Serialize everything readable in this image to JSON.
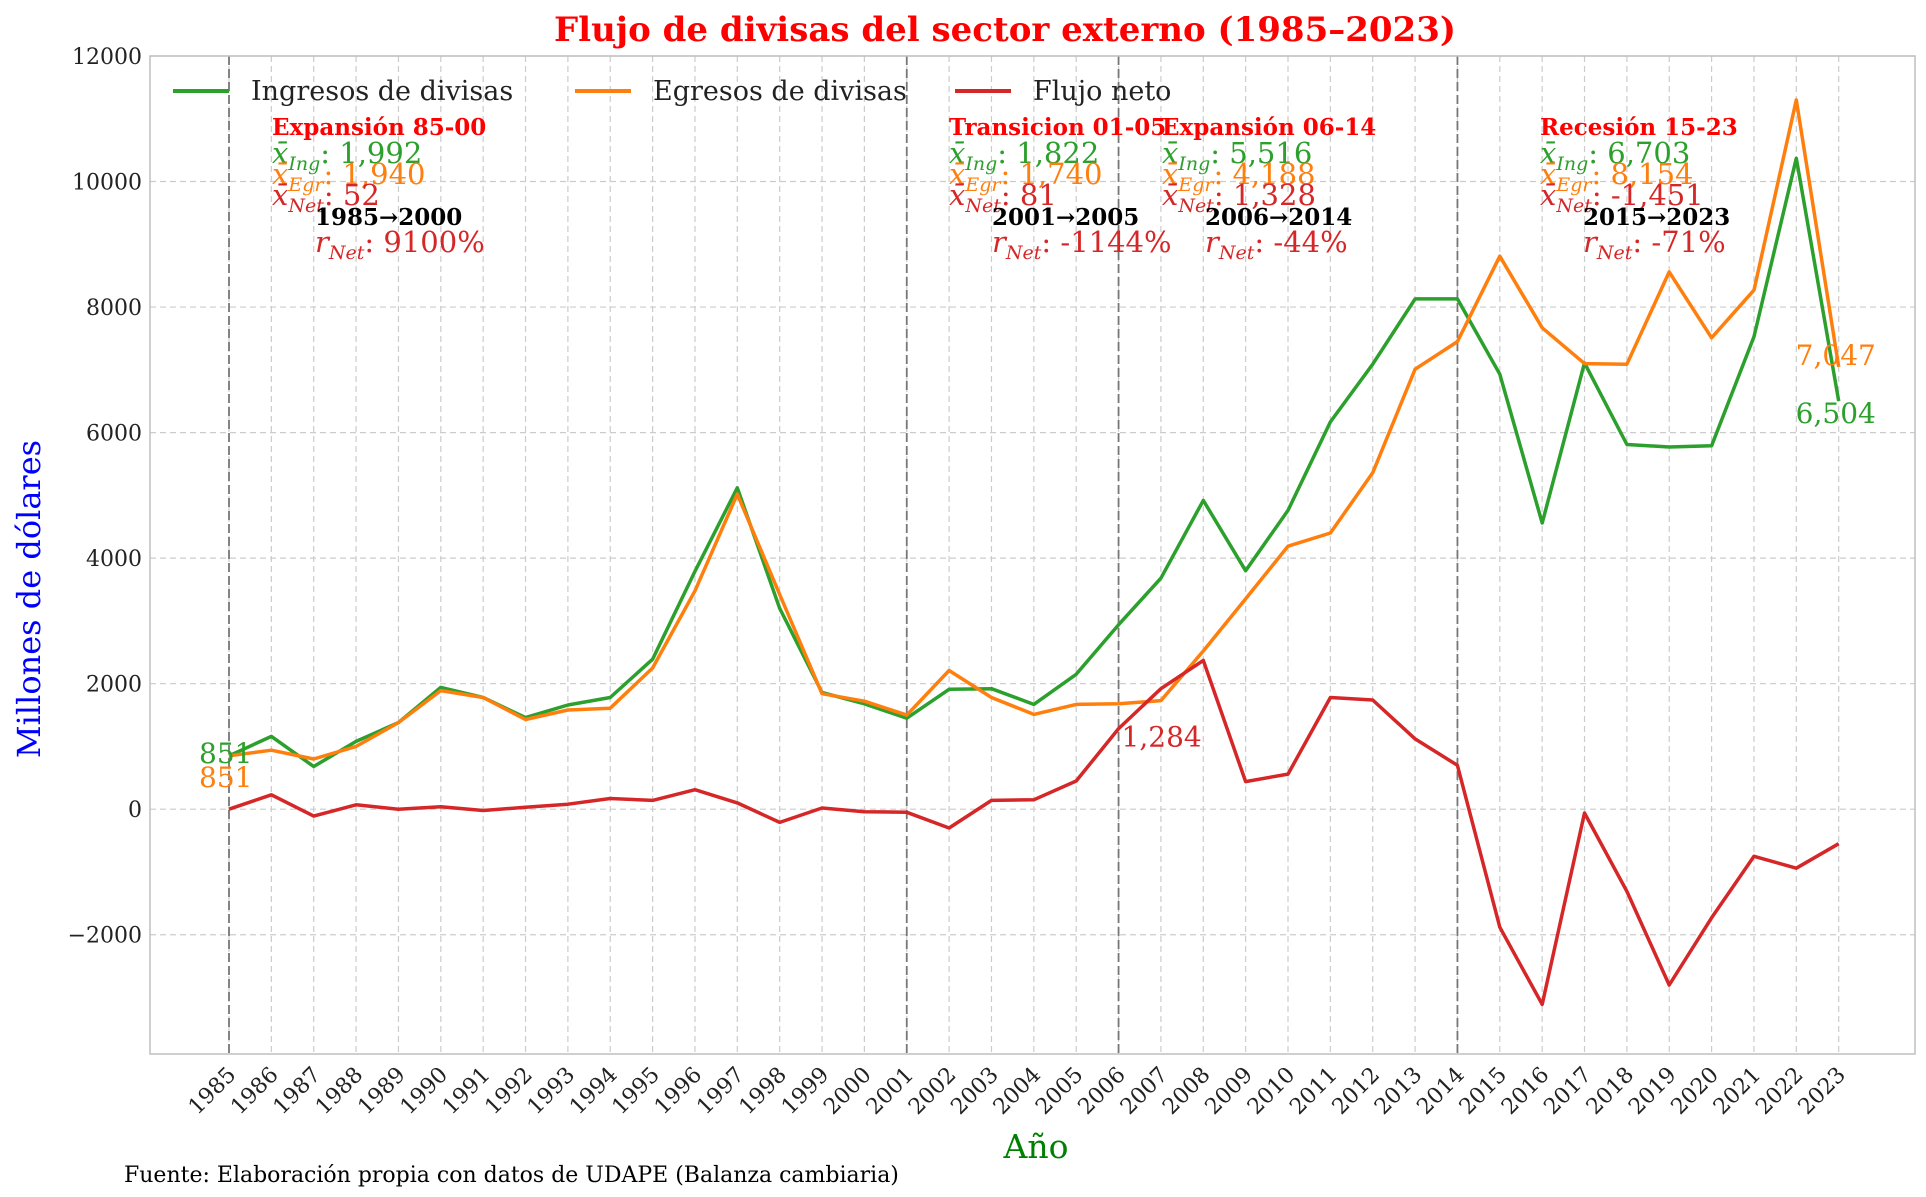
{
  "chart_data": {
    "type": "line",
    "title": "Flujo de divisas del sector externo (1985–2023)",
    "xlabel": "Año",
    "ylabel": "Millones de dólares",
    "source": "Fuente: Elaboración propia con datos de UDAPE (Balanza cambiaria)",
    "ylim": [
      -3900,
      12000
    ],
    "yticks": [
      -2000,
      0,
      2000,
      4000,
      6000,
      8000,
      10000,
      12000
    ],
    "ytick_labels": [
      "−2000",
      "0",
      "2000",
      "4000",
      "6000",
      "8000",
      "10000",
      "12000"
    ],
    "grid": true,
    "legend_position": "top-left",
    "x": [
      "1985",
      "1986",
      "1987",
      "1988",
      "1989",
      "1990",
      "1991",
      "1992",
      "1993",
      "1994",
      "1995",
      "1996",
      "1997",
      "1998",
      "1999",
      "2000",
      "2001",
      "2002",
      "2003",
      "2004",
      "2005",
      "2006",
      "2007",
      "2008",
      "2009",
      "2010",
      "2011",
      "2012",
      "2013",
      "2014",
      "2015",
      "2016",
      "2017",
      "2018",
      "2019",
      "2020",
      "2021",
      "2022",
      "2023"
    ],
    "series": [
      {
        "name": "Ingresos de divisas",
        "color": "#2ca02c",
        "values": [
          851,
          1160,
          680,
          1080,
          1380,
          1940,
          1780,
          1460,
          1660,
          1780,
          2390,
          3790,
          5120,
          3200,
          1860,
          1680,
          1450,
          1910,
          1920,
          1670,
          2150,
          2940,
          3680,
          4920,
          3800,
          4760,
          6170,
          7090,
          8130,
          8130,
          6930,
          4560,
          7110,
          5810,
          5770,
          5790,
          7530,
          10370,
          6504
        ]
      },
      {
        "name": "Egresos de divisas",
        "color": "#ff7f0e",
        "values": [
          851,
          940,
          800,
          1000,
          1380,
          1890,
          1780,
          1430,
          1580,
          1610,
          2250,
          3480,
          5020,
          3420,
          1840,
          1720,
          1500,
          2210,
          1780,
          1510,
          1670,
          1680,
          1730,
          2520,
          3350,
          4190,
          4400,
          5360,
          7010,
          7450,
          8810,
          7670,
          7100,
          7090,
          8560,
          7510,
          8270,
          11300,
          7047
        ]
      },
      {
        "name": "Flujo neto",
        "color": "#d62728",
        "values": [
          0,
          230,
          -110,
          70,
          0,
          40,
          -20,
          30,
          80,
          170,
          140,
          310,
          100,
          -210,
          20,
          -40,
          -50,
          -300,
          140,
          150,
          450,
          1284,
          1920,
          2370,
          440,
          560,
          1780,
          1740,
          1120,
          700,
          -1880,
          -3110,
          -60,
          -1310,
          -2800,
          -1730,
          -750,
          -940,
          -550
        ]
      }
    ],
    "point_labels": [
      {
        "year": "1985",
        "series": "Ingresos de divisas",
        "text": "851"
      },
      {
        "year": "1985",
        "series": "Egresos de divisas",
        "text": "851"
      },
      {
        "year": "2006",
        "series": "Flujo neto",
        "text": "1,284"
      },
      {
        "year": "2023",
        "series": "Egresos de divisas",
        "text": "7,047"
      },
      {
        "year": "2023",
        "series": "Ingresos de divisas",
        "text": "6,504"
      }
    ],
    "period_dividers": [
      "1985",
      "2001",
      "2006",
      "2014"
    ],
    "periods": [
      {
        "name": "Expansión 85-00",
        "ing_mean": "1,992",
        "egr_mean": "1,940",
        "net_mean": "52",
        "range": "1985→2000",
        "net_change": "9100%"
      },
      {
        "name": "Transicion 01-05",
        "ing_mean": "1,822",
        "egr_mean": "1,740",
        "net_mean": "81",
        "range": "2001→2005",
        "net_change": "-1144%"
      },
      {
        "name": "Expansión 06-14",
        "ing_mean": "5,516",
        "egr_mean": "4,188",
        "net_mean": "1,328",
        "range": "2006→2014",
        "net_change": "-44%"
      },
      {
        "name": "Recesión 15-23",
        "ing_mean": "6,703",
        "egr_mean": "8,154",
        "net_mean": "-1,451",
        "range": "2015→2023",
        "net_change": "-71%"
      }
    ],
    "stat_labels": {
      "ing": "x̄",
      "ing_sub": "Ing",
      "egr": "x̄",
      "egr_sub": "Egr",
      "net": "x̄",
      "net_sub": "Net",
      "r": "r",
      "r_sub": "Net"
    },
    "colors": {
      "title": "#ff0000",
      "ylabel": "#0000ff",
      "xlabel": "#008000",
      "period_title": "#ff0000",
      "range": "#000000"
    }
  }
}
